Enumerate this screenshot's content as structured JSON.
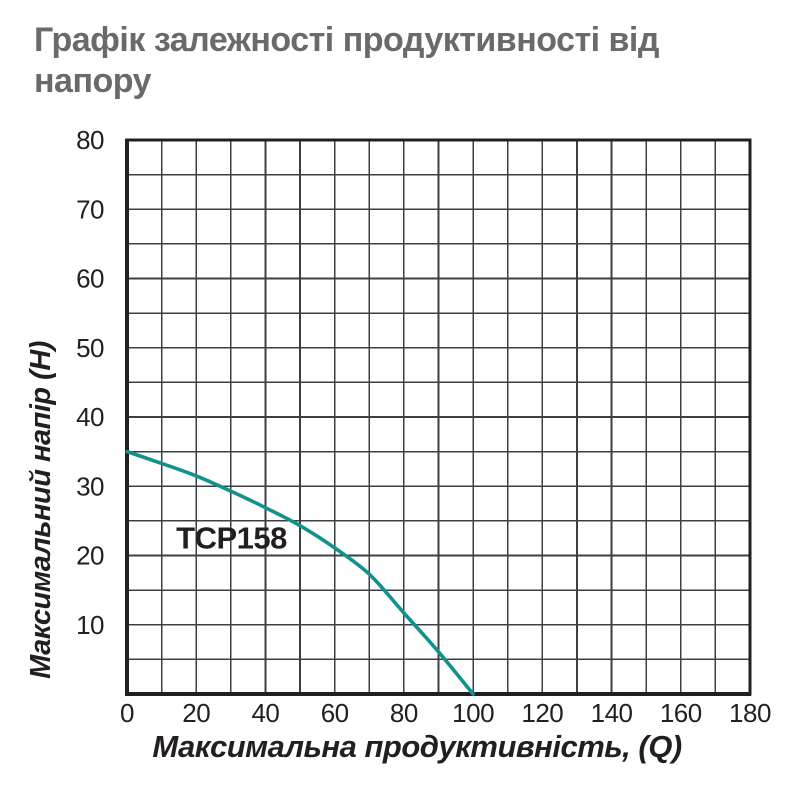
{
  "title": {
    "lines": [
      "Графік залежності продуктивності від",
      "напору"
    ]
  },
  "colors": {
    "background": "#ffffff",
    "title": "#696a6c",
    "grid": "#3e3f41",
    "axis": "#231f20",
    "tick_text": "#231f20",
    "curve": "#12928f"
  },
  "chart_data": {
    "type": "line",
    "title": "Графік залежності продуктивності від напору",
    "xlabel": "Максимальна продуктивність, (Q)",
    "ylabel": "Максимальний напір (H)",
    "xlim": [
      0,
      180
    ],
    "ylim": [
      0,
      80
    ],
    "x_grid_step": 10,
    "y_grid_step": 5,
    "grid": true,
    "x_tick_labels": [
      "0",
      "20",
      "40",
      "60",
      "80",
      "100",
      "120",
      "140",
      "160",
      "180"
    ],
    "x_tick_values": [
      0,
      20,
      40,
      60,
      80,
      100,
      120,
      140,
      160,
      180
    ],
    "y_tick_labels": [
      "10",
      "20",
      "30",
      "40",
      "50",
      "60",
      "70",
      "80"
    ],
    "y_tick_values": [
      10,
      20,
      30,
      40,
      50,
      60,
      70,
      80
    ],
    "legend_position": "inline-label-on-curve",
    "series": [
      {
        "name": "TCP158",
        "x": [
          0,
          10,
          20,
          30,
          40,
          50,
          60,
          70,
          80,
          90,
          100
        ],
        "y": [
          35,
          33.3,
          31.5,
          29.3,
          26.9,
          24.3,
          21.1,
          17.3,
          11.7,
          6.1,
          0
        ],
        "color": "#12928f",
        "label_anchor_data": [
          14.2,
          21.0
        ]
      }
    ]
  }
}
